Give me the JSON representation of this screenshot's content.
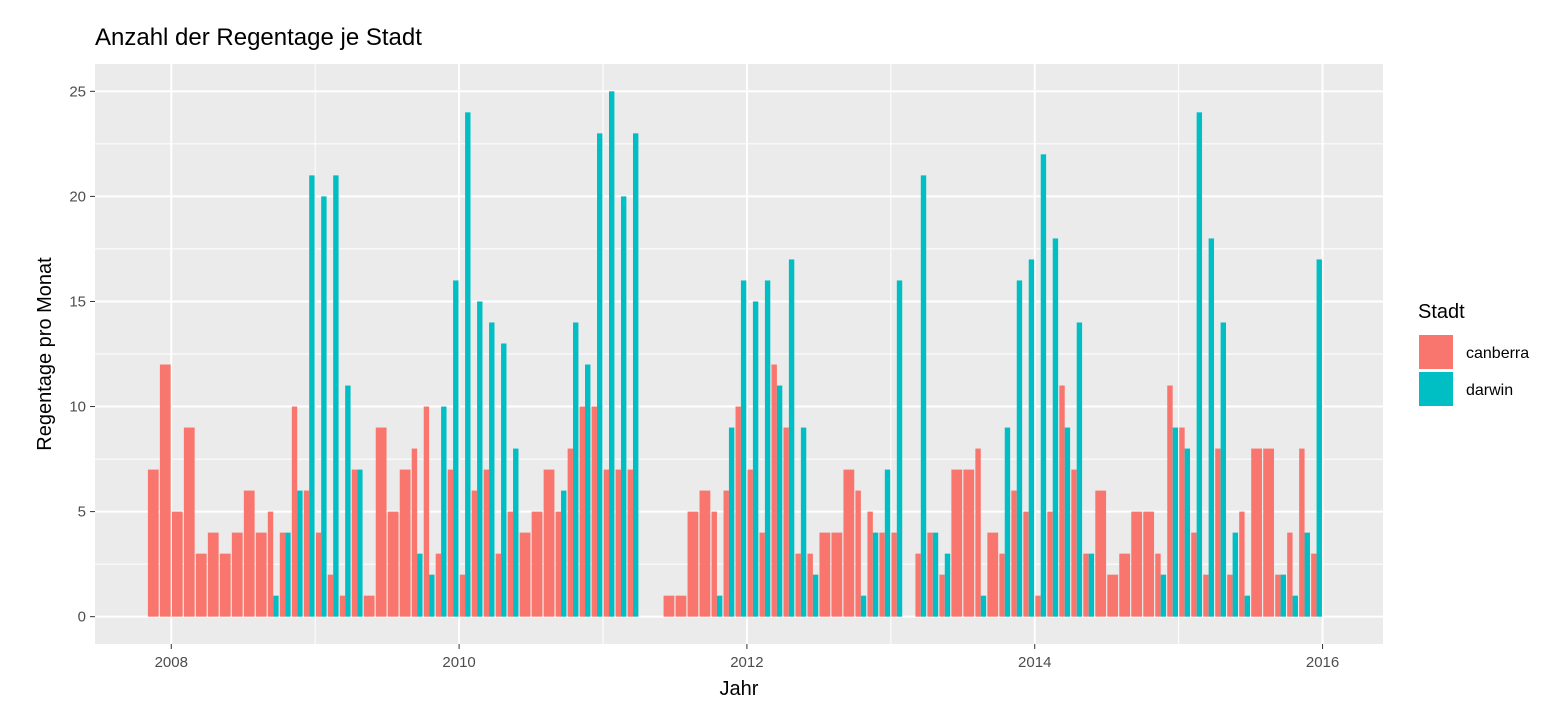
{
  "chart_data": {
    "type": "bar",
    "title": "Anzahl der Regentage je Stadt",
    "xlabel": "Jahr",
    "ylabel": "Regentage pro Monat",
    "x_ticks": [
      "2008",
      "2010",
      "2012",
      "2014",
      "2016"
    ],
    "y_ticks": [
      "0",
      "5",
      "10",
      "15",
      "20",
      "25"
    ],
    "xlim": [
      2007.47,
      2016.42
    ],
    "ylim": [
      -1.3,
      26.3
    ],
    "grid": true,
    "legend": {
      "title": "Stadt",
      "position": "right"
    },
    "series": [
      {
        "name": "canberra",
        "color": "#F8766D",
        "points": [
          [
            "2007-11",
            7
          ],
          [
            "2007-12",
            12
          ],
          [
            "2008-01",
            5
          ],
          [
            "2008-02",
            9
          ],
          [
            "2008-03",
            3
          ],
          [
            "2008-04",
            4
          ],
          [
            "2008-05",
            3
          ],
          [
            "2008-06",
            4
          ],
          [
            "2008-07",
            6
          ],
          [
            "2008-08",
            4
          ],
          [
            "2008-09",
            5
          ],
          [
            "2008-10",
            4
          ],
          [
            "2008-11",
            10
          ],
          [
            "2008-12",
            6
          ],
          [
            "2009-01",
            4
          ],
          [
            "2009-02",
            2
          ],
          [
            "2009-03",
            1
          ],
          [
            "2009-04",
            7
          ],
          [
            "2009-05",
            1
          ],
          [
            "2009-06",
            9
          ],
          [
            "2009-07",
            5
          ],
          [
            "2009-08",
            7
          ],
          [
            "2009-09",
            8
          ],
          [
            "2009-10",
            10
          ],
          [
            "2009-11",
            3
          ],
          [
            "2009-12",
            7
          ],
          [
            "2010-01",
            2
          ],
          [
            "2010-02",
            6
          ],
          [
            "2010-03",
            7
          ],
          [
            "2010-04",
            3
          ],
          [
            "2010-05",
            5
          ],
          [
            "2010-06",
            4
          ],
          [
            "2010-07",
            5
          ],
          [
            "2010-08",
            7
          ],
          [
            "2010-09",
            5
          ],
          [
            "2010-10",
            8
          ],
          [
            "2010-11",
            10
          ],
          [
            "2010-12",
            10
          ],
          [
            "2011-01",
            7
          ],
          [
            "2011-02",
            7
          ],
          [
            "2011-03",
            7
          ],
          [
            "2011-06",
            1
          ],
          [
            "2011-07",
            1
          ],
          [
            "2011-08",
            5
          ],
          [
            "2011-09",
            6
          ],
          [
            "2011-10",
            5
          ],
          [
            "2011-11",
            6
          ],
          [
            "2011-12",
            10
          ],
          [
            "2012-01",
            7
          ],
          [
            "2012-02",
            4
          ],
          [
            "2012-03",
            12
          ],
          [
            "2012-04",
            9
          ],
          [
            "2012-05",
            3
          ],
          [
            "2012-06",
            3
          ],
          [
            "2012-07",
            4
          ],
          [
            "2012-08",
            4
          ],
          [
            "2012-09",
            7
          ],
          [
            "2012-10",
            6
          ],
          [
            "2012-11",
            5
          ],
          [
            "2012-12",
            4
          ],
          [
            "2013-01",
            4
          ],
          [
            "2013-03",
            3
          ],
          [
            "2013-04",
            4
          ],
          [
            "2013-05",
            2
          ],
          [
            "2013-06",
            7
          ],
          [
            "2013-07",
            7
          ],
          [
            "2013-08",
            8
          ],
          [
            "2013-09",
            4
          ],
          [
            "2013-10",
            3
          ],
          [
            "2013-11",
            6
          ],
          [
            "2013-12",
            5
          ],
          [
            "2014-01",
            1
          ],
          [
            "2014-02",
            5
          ],
          [
            "2014-03",
            11
          ],
          [
            "2014-04",
            7
          ],
          [
            "2014-05",
            3
          ],
          [
            "2014-06",
            6
          ],
          [
            "2014-07",
            2
          ],
          [
            "2014-08",
            3
          ],
          [
            "2014-09",
            5
          ],
          [
            "2014-10",
            5
          ],
          [
            "2014-11",
            3
          ],
          [
            "2014-12",
            11
          ],
          [
            "2015-01",
            9
          ],
          [
            "2015-02",
            4
          ],
          [
            "2015-03",
            2
          ],
          [
            "2015-04",
            8
          ],
          [
            "2015-05",
            2
          ],
          [
            "2015-06",
            5
          ],
          [
            "2015-07",
            8
          ],
          [
            "2015-08",
            8
          ],
          [
            "2015-09",
            2
          ],
          [
            "2015-10",
            4
          ],
          [
            "2015-11",
            8
          ],
          [
            "2015-12",
            3
          ]
        ]
      },
      {
        "name": "darwin",
        "color": "#00BFC4",
        "points": [
          [
            "2008-09",
            1
          ],
          [
            "2008-10",
            4
          ],
          [
            "2008-11",
            6
          ],
          [
            "2008-12",
            21
          ],
          [
            "2009-01",
            20
          ],
          [
            "2009-02",
            21
          ],
          [
            "2009-03",
            11
          ],
          [
            "2009-04",
            7
          ],
          [
            "2009-09",
            3
          ],
          [
            "2009-10",
            2
          ],
          [
            "2009-11",
            10
          ],
          [
            "2009-12",
            16
          ],
          [
            "2010-01",
            24
          ],
          [
            "2010-02",
            15
          ],
          [
            "2010-03",
            14
          ],
          [
            "2010-04",
            13
          ],
          [
            "2010-05",
            8
          ],
          [
            "2010-09",
            6
          ],
          [
            "2010-10",
            14
          ],
          [
            "2010-11",
            12
          ],
          [
            "2010-12",
            23
          ],
          [
            "2011-01",
            25
          ],
          [
            "2011-02",
            20
          ],
          [
            "2011-03",
            23
          ],
          [
            "2011-10",
            1
          ],
          [
            "2011-11",
            9
          ],
          [
            "2011-12",
            16
          ],
          [
            "2012-01",
            15
          ],
          [
            "2012-02",
            16
          ],
          [
            "2012-03",
            11
          ],
          [
            "2012-04",
            17
          ],
          [
            "2012-05",
            9
          ],
          [
            "2012-06",
            2
          ],
          [
            "2012-10",
            1
          ],
          [
            "2012-11",
            4
          ],
          [
            "2012-12",
            7
          ],
          [
            "2013-01",
            16
          ],
          [
            "2013-03",
            21
          ],
          [
            "2013-04",
            4
          ],
          [
            "2013-05",
            3
          ],
          [
            "2013-08",
            1
          ],
          [
            "2013-10",
            9
          ],
          [
            "2013-11",
            16
          ],
          [
            "2013-12",
            17
          ],
          [
            "2014-01",
            22
          ],
          [
            "2014-02",
            18
          ],
          [
            "2014-03",
            9
          ],
          [
            "2014-04",
            14
          ],
          [
            "2014-05",
            3
          ],
          [
            "2014-11",
            2
          ],
          [
            "2014-12",
            9
          ],
          [
            "2015-01",
            8
          ],
          [
            "2015-02",
            24
          ],
          [
            "2015-03",
            18
          ],
          [
            "2015-04",
            14
          ],
          [
            "2015-05",
            4
          ],
          [
            "2015-06",
            1
          ],
          [
            "2015-09",
            2
          ],
          [
            "2015-10",
            1
          ],
          [
            "2015-11",
            4
          ],
          [
            "2015-12",
            17
          ]
        ]
      }
    ]
  }
}
